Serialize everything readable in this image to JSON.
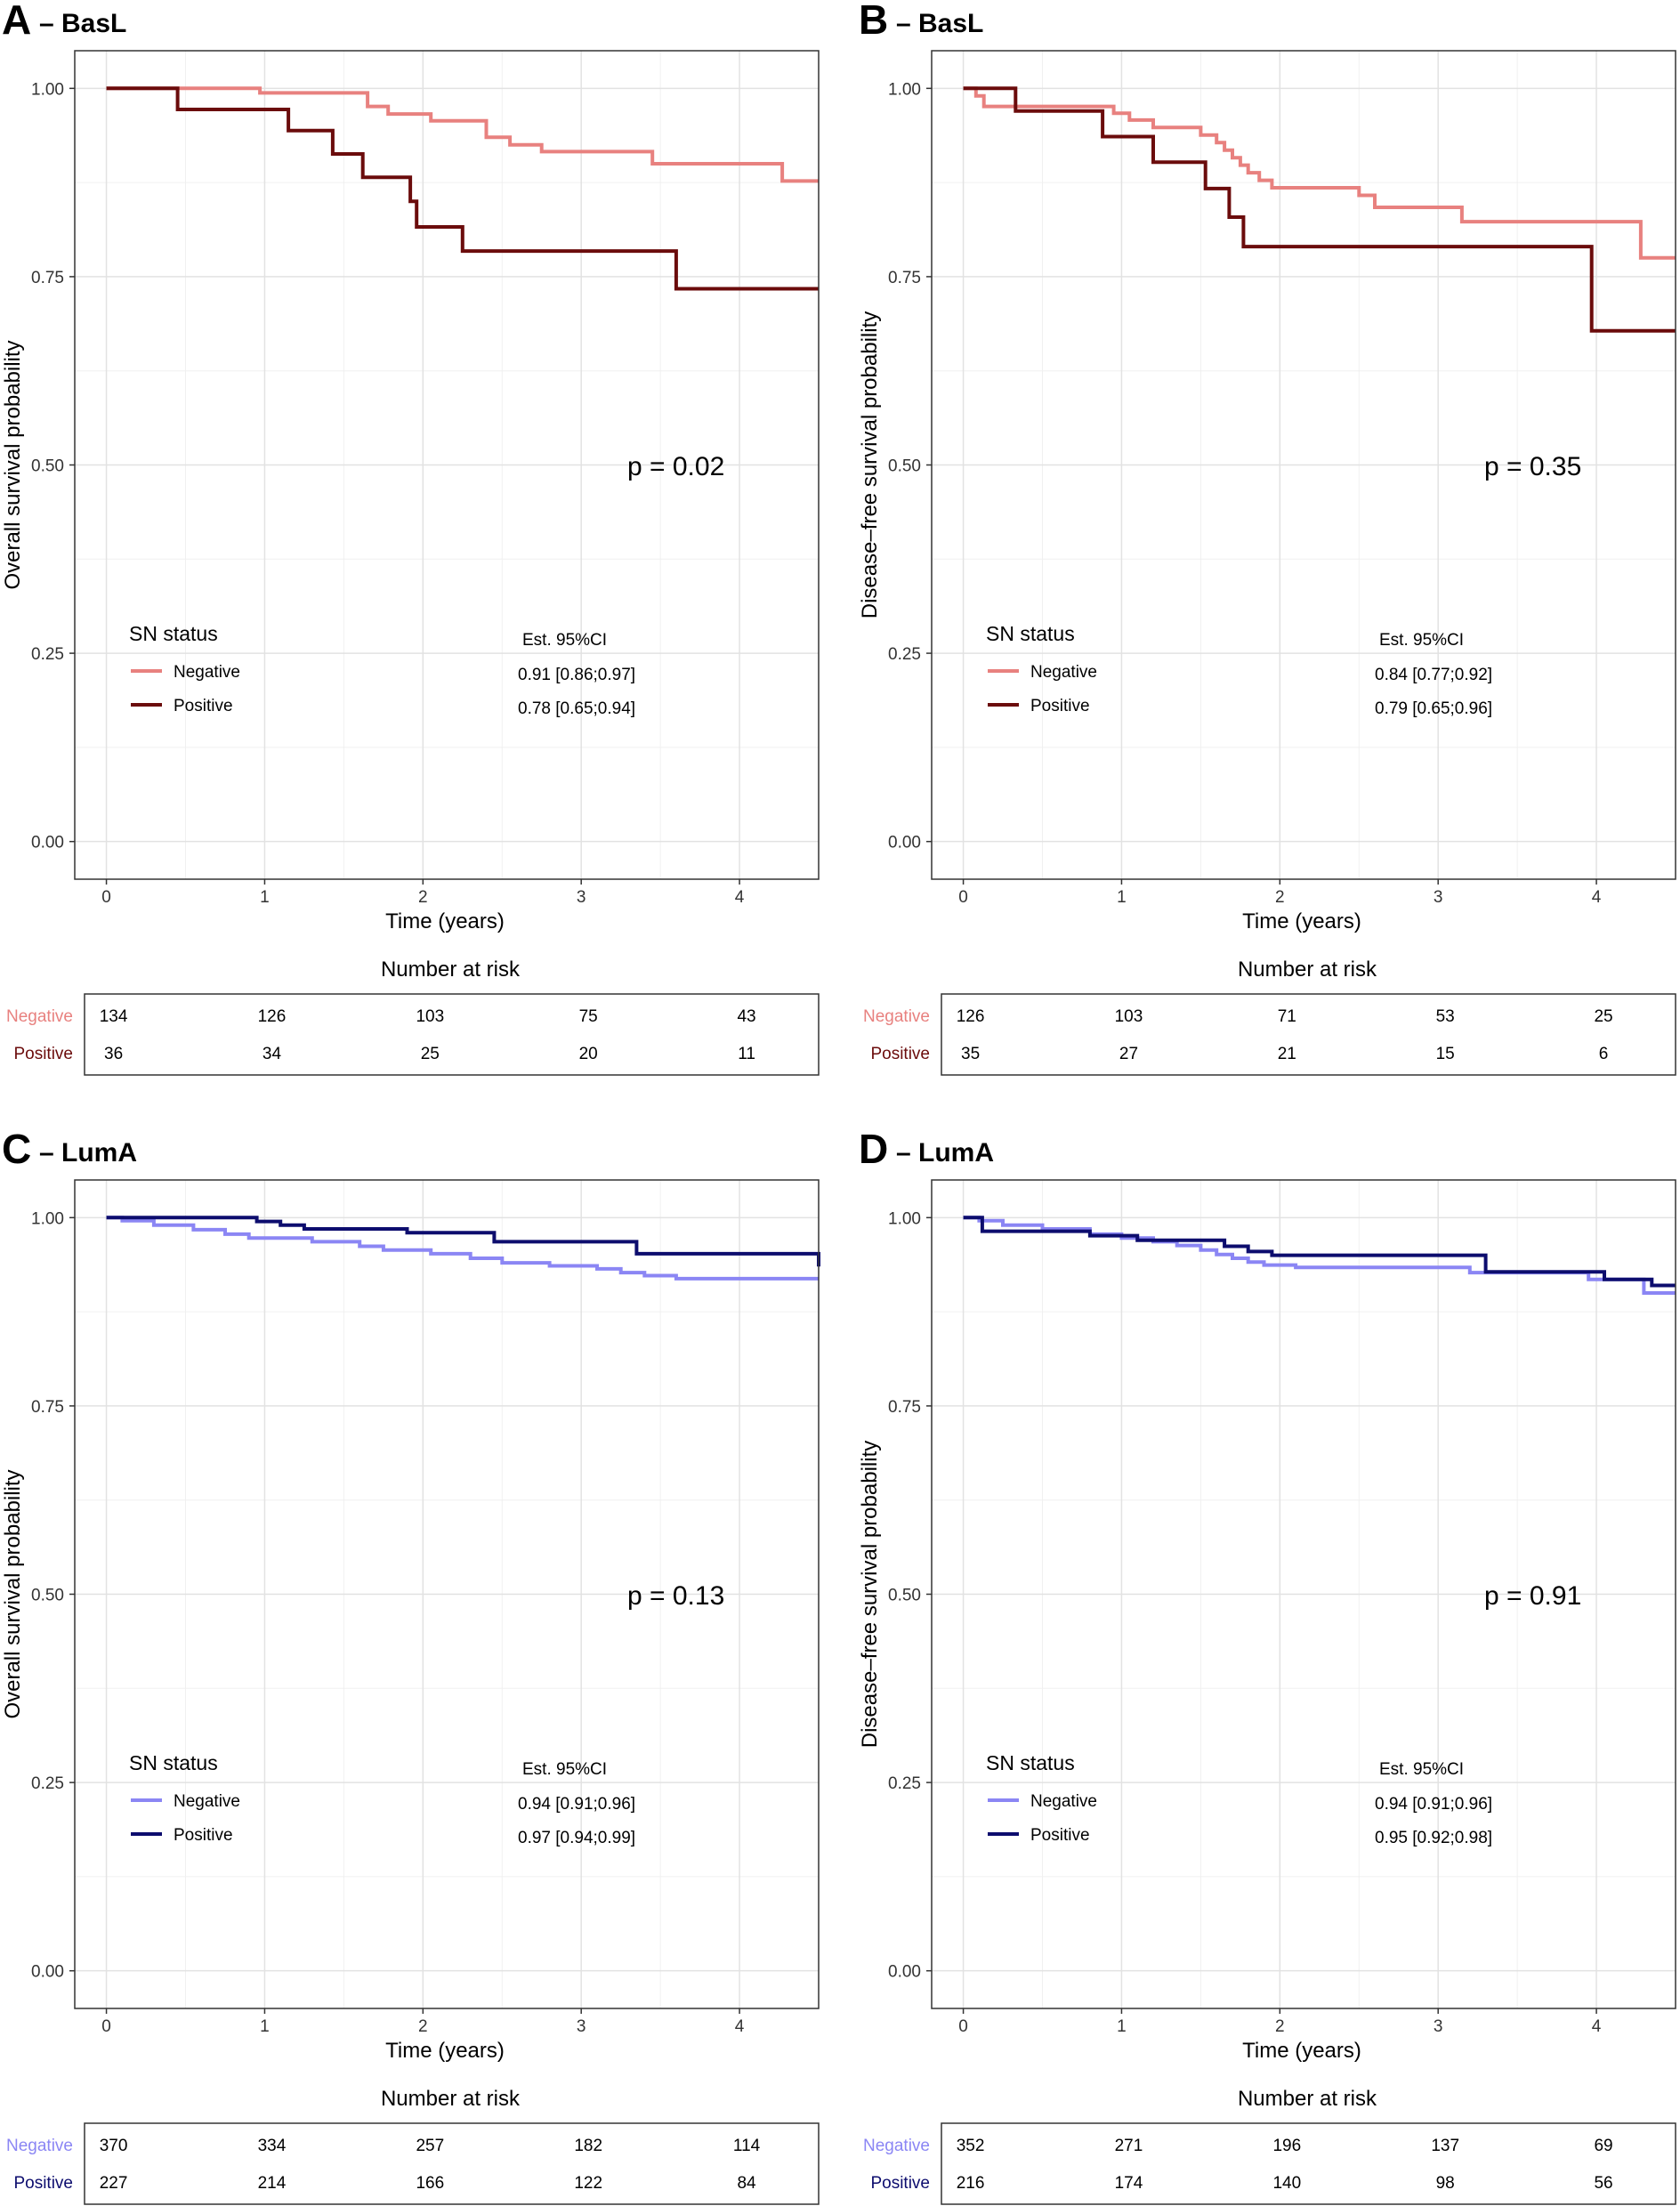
{
  "chart_data": [
    {
      "type": "line",
      "panel_letter": "A",
      "panel_subtitle": "– BasL",
      "xlabel": "Time (years)",
      "ylabel": "Overall survival probability",
      "xlim": [
        -0.2,
        4.5
      ],
      "ylim": [
        -0.05,
        1.05
      ],
      "x_ticks": [
        "0",
        "1",
        "2",
        "3",
        "4"
      ],
      "y_ticks": [
        "0.00",
        "0.25",
        "0.50",
        "0.75",
        "1.00"
      ],
      "p_value": "p = 0.02",
      "legend_title": "SN status",
      "est_header": "Est.   95%CI",
      "series": [
        {
          "name": "Negative",
          "color": "#E8817F",
          "est": "0.91 [0.86;0.97]",
          "steps": [
            [
              0,
              1.0
            ],
            [
              0.97,
              0.994
            ],
            [
              1.65,
              0.976
            ],
            [
              1.78,
              0.966
            ],
            [
              2.05,
              0.957
            ],
            [
              2.4,
              0.935
            ],
            [
              2.55,
              0.925
            ],
            [
              2.75,
              0.916
            ],
            [
              3.45,
              0.9
            ],
            [
              4.27,
              0.877
            ],
            [
              4.5,
              0.877
            ]
          ]
        },
        {
          "name": "Positive",
          "color": "#6B0C0C",
          "est": "0.78 [0.65;0.94]",
          "steps": [
            [
              0,
              1.0
            ],
            [
              0.45,
              0.972
            ],
            [
              1.15,
              0.944
            ],
            [
              1.43,
              0.913
            ],
            [
              1.62,
              0.882
            ],
            [
              1.92,
              0.85
            ],
            [
              1.96,
              0.816
            ],
            [
              2.25,
              0.784
            ],
            [
              3.6,
              0.734
            ],
            [
              4.5,
              0.734
            ]
          ]
        }
      ],
      "risk_table": {
        "title": "Number at risk",
        "times": [
          "0",
          "1",
          "2",
          "3",
          "4"
        ],
        "rows": [
          {
            "label": "Negative",
            "color": "#E8817F",
            "values": [
              "134",
              "126",
              "103",
              "75",
              "43"
            ]
          },
          {
            "label": "Positive",
            "color": "#6B0C0C",
            "values": [
              "36",
              "34",
              "25",
              "20",
              "11"
            ]
          }
        ]
      }
    },
    {
      "type": "line",
      "panel_letter": "B",
      "panel_subtitle": "– BasL",
      "xlabel": "Time (years)",
      "ylabel": "Disease–free survival probability",
      "xlim": [
        -0.2,
        4.5
      ],
      "ylim": [
        -0.05,
        1.05
      ],
      "x_ticks": [
        "0",
        "1",
        "2",
        "3",
        "4"
      ],
      "y_ticks": [
        "0.00",
        "0.25",
        "0.50",
        "0.75",
        "1.00"
      ],
      "p_value": "p = 0.35",
      "legend_title": "SN status",
      "est_header": "Est.   95%CI",
      "series": [
        {
          "name": "Negative",
          "color": "#E8817F",
          "est": "0.84 [0.77;0.92]",
          "steps": [
            [
              0,
              1.0
            ],
            [
              0.08,
              0.99
            ],
            [
              0.13,
              0.976
            ],
            [
              0.95,
              0.967
            ],
            [
              1.05,
              0.958
            ],
            [
              1.2,
              0.948
            ],
            [
              1.5,
              0.938
            ],
            [
              1.6,
              0.928
            ],
            [
              1.65,
              0.918
            ],
            [
              1.7,
              0.908
            ],
            [
              1.75,
              0.898
            ],
            [
              1.8,
              0.888
            ],
            [
              1.87,
              0.878
            ],
            [
              1.95,
              0.868
            ],
            [
              2.5,
              0.858
            ],
            [
              2.6,
              0.842
            ],
            [
              3.15,
              0.823
            ],
            [
              4.28,
              0.775
            ],
            [
              4.5,
              0.775
            ]
          ]
        },
        {
          "name": "Positive",
          "color": "#6B0C0C",
          "est": "0.79 [0.65;0.96]",
          "steps": [
            [
              0,
              1.0
            ],
            [
              0.33,
              0.97
            ],
            [
              0.88,
              0.936
            ],
            [
              1.2,
              0.902
            ],
            [
              1.53,
              0.867
            ],
            [
              1.68,
              0.829
            ],
            [
              1.77,
              0.79
            ],
            [
              3.97,
              0.678
            ],
            [
              4.5,
              0.678
            ]
          ]
        }
      ],
      "risk_table": {
        "title": "Number at risk",
        "times": [
          "0",
          "1",
          "2",
          "3",
          "4"
        ],
        "rows": [
          {
            "label": "Negative",
            "color": "#E8817F",
            "values": [
              "126",
              "103",
              "71",
              "53",
              "25"
            ]
          },
          {
            "label": "Positive",
            "color": "#6B0C0C",
            "values": [
              "35",
              "27",
              "21",
              "15",
              "6"
            ]
          }
        ]
      }
    },
    {
      "type": "line",
      "panel_letter": "C",
      "panel_subtitle": "– LumA",
      "xlabel": "Time (years)",
      "ylabel": "Overall survival probability",
      "xlim": [
        -0.2,
        4.5
      ],
      "ylim": [
        -0.05,
        1.05
      ],
      "x_ticks": [
        "0",
        "1",
        "2",
        "3",
        "4"
      ],
      "y_ticks": [
        "0.00",
        "0.25",
        "0.50",
        "0.75",
        "1.00"
      ],
      "p_value": "p = 0.13",
      "legend_title": "SN status",
      "est_header": "Est.   95%CI",
      "series": [
        {
          "name": "Negative",
          "color": "#8B86F4",
          "est": "0.94 [0.91;0.96]",
          "steps": [
            [
              0,
              1.0
            ],
            [
              0.1,
              0.996
            ],
            [
              0.3,
              0.99
            ],
            [
              0.55,
              0.984
            ],
            [
              0.75,
              0.978
            ],
            [
              0.9,
              0.973
            ],
            [
              1.3,
              0.968
            ],
            [
              1.6,
              0.962
            ],
            [
              1.75,
              0.957
            ],
            [
              2.05,
              0.952
            ],
            [
              2.3,
              0.946
            ],
            [
              2.5,
              0.94
            ],
            [
              2.8,
              0.936
            ],
            [
              3.1,
              0.932
            ],
            [
              3.25,
              0.927
            ],
            [
              3.4,
              0.923
            ],
            [
              3.6,
              0.919
            ],
            [
              4.5,
              0.919
            ]
          ]
        },
        {
          "name": "Positive",
          "color": "#0D0D6E",
          "est": "0.97 [0.94;0.99]",
          "steps": [
            [
              0,
              1.0
            ],
            [
              0.95,
              0.995
            ],
            [
              1.1,
              0.99
            ],
            [
              1.25,
              0.985
            ],
            [
              1.9,
              0.98
            ],
            [
              2.45,
              0.968
            ],
            [
              3.35,
              0.952
            ],
            [
              4.5,
              0.935
            ]
          ]
        }
      ],
      "risk_table": {
        "title": "Number at risk",
        "times": [
          "0",
          "1",
          "2",
          "3",
          "4"
        ],
        "rows": [
          {
            "label": "Negative",
            "color": "#8B86F4",
            "values": [
              "370",
              "334",
              "257",
              "182",
              "114"
            ]
          },
          {
            "label": "Positive",
            "color": "#0D0D6E",
            "values": [
              "227",
              "214",
              "166",
              "122",
              "84"
            ]
          }
        ]
      }
    },
    {
      "type": "line",
      "panel_letter": "D",
      "panel_subtitle": "– LumA",
      "xlabel": "Time (years)",
      "ylabel": "Disease–free survival probability",
      "xlim": [
        -0.2,
        4.5
      ],
      "ylim": [
        -0.05,
        1.05
      ],
      "x_ticks": [
        "0",
        "1",
        "2",
        "3",
        "4"
      ],
      "y_ticks": [
        "0.00",
        "0.25",
        "0.50",
        "0.75",
        "1.00"
      ],
      "p_value": "p = 0.91",
      "legend_title": "SN status",
      "est_header": "Est.   95%CI",
      "series": [
        {
          "name": "Negative",
          "color": "#8B86F4",
          "est": "0.94 [0.91;0.96]",
          "steps": [
            [
              0,
              1.0
            ],
            [
              0.1,
              0.996
            ],
            [
              0.25,
              0.99
            ],
            [
              0.5,
              0.985
            ],
            [
              0.8,
              0.978
            ],
            [
              1.0,
              0.973
            ],
            [
              1.2,
              0.968
            ],
            [
              1.35,
              0.963
            ],
            [
              1.5,
              0.957
            ],
            [
              1.6,
              0.951
            ],
            [
              1.7,
              0.946
            ],
            [
              1.8,
              0.941
            ],
            [
              1.9,
              0.937
            ],
            [
              2.1,
              0.934
            ],
            [
              3.2,
              0.927
            ],
            [
              3.95,
              0.918
            ],
            [
              4.3,
              0.9
            ],
            [
              4.5,
              0.9
            ]
          ]
        },
        {
          "name": "Positive",
          "color": "#0D0D6E",
          "est": "0.95 [0.92;0.98]",
          "steps": [
            [
              0,
              1.0
            ],
            [
              0.12,
              0.982
            ],
            [
              0.8,
              0.976
            ],
            [
              1.1,
              0.97
            ],
            [
              1.65,
              0.962
            ],
            [
              1.8,
              0.955
            ],
            [
              1.95,
              0.95
            ],
            [
              3.3,
              0.928
            ],
            [
              4.05,
              0.918
            ],
            [
              4.35,
              0.91
            ],
            [
              4.5,
              0.91
            ]
          ]
        }
      ],
      "risk_table": {
        "title": "Number at risk",
        "times": [
          "0",
          "1",
          "2",
          "3",
          "4"
        ],
        "rows": [
          {
            "label": "Negative",
            "color": "#8B86F4",
            "values": [
              "352",
              "271",
              "196",
              "137",
              "69"
            ]
          },
          {
            "label": "Positive",
            "color": "#0D0D6E",
            "values": [
              "216",
              "174",
              "140",
              "98",
              "56"
            ]
          }
        ]
      }
    }
  ]
}
